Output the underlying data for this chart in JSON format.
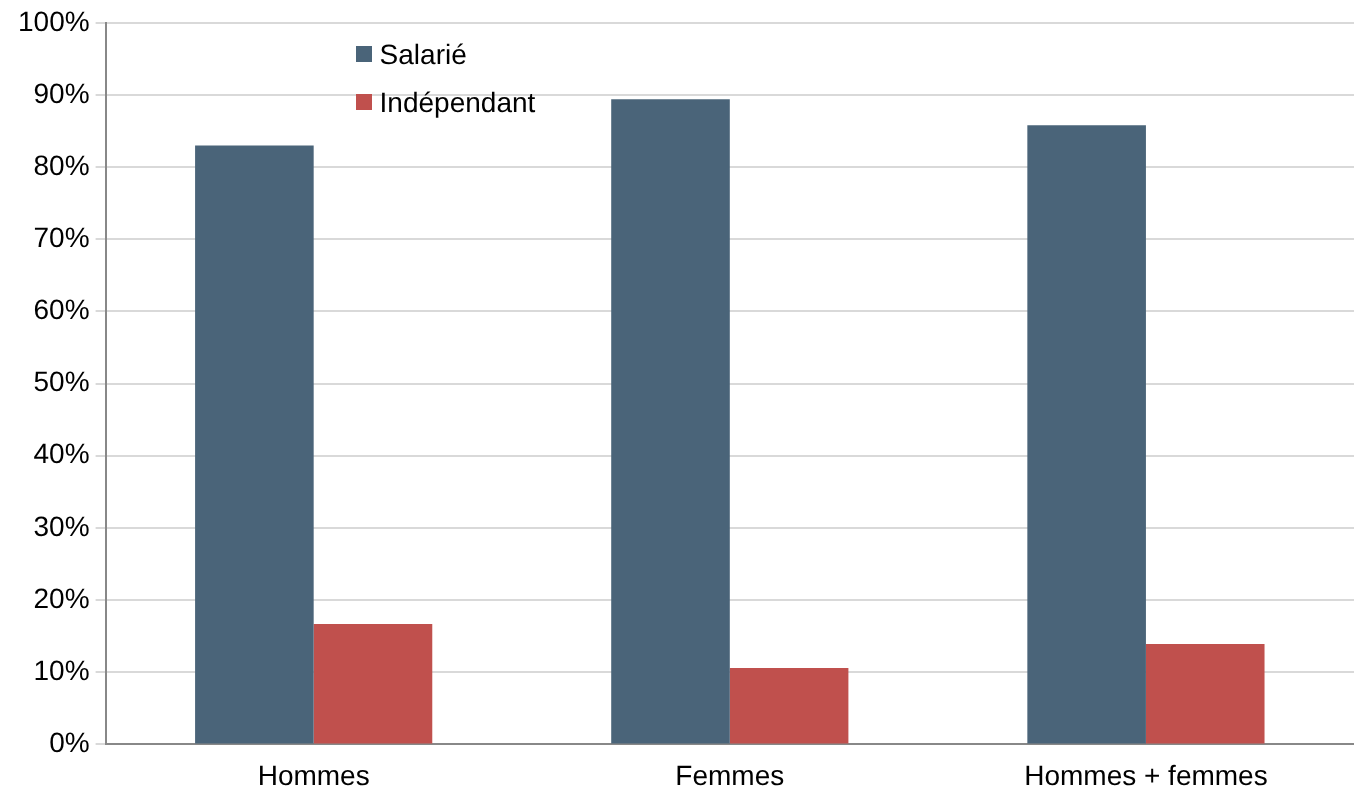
{
  "chart_data": {
    "type": "bar",
    "categories": [
      "Hommes",
      "Femmes",
      "Hommes + femmes"
    ],
    "series": [
      {
        "name": "Salarié",
        "color": "#4a6479",
        "values": [
          83,
          89.4,
          85.8
        ]
      },
      {
        "name": "Indépendant",
        "color": "#c0504d",
        "values": [
          16.7,
          10.6,
          13.9
        ]
      }
    ],
    "ylim": [
      0,
      100
    ],
    "yticks": [
      {
        "value": 0,
        "label": "0%"
      },
      {
        "value": 10,
        "label": "10%"
      },
      {
        "value": 20,
        "label": "20%"
      },
      {
        "value": 30,
        "label": "30%"
      },
      {
        "value": 40,
        "label": "40%"
      },
      {
        "value": 50,
        "label": "50%"
      },
      {
        "value": 60,
        "label": "60%"
      },
      {
        "value": 70,
        "label": "70%"
      },
      {
        "value": 80,
        "label": "80%"
      },
      {
        "value": 90,
        "label": "90%"
      },
      {
        "value": 100,
        "label": "100%"
      }
    ],
    "grid": "y",
    "legend": "top left"
  }
}
